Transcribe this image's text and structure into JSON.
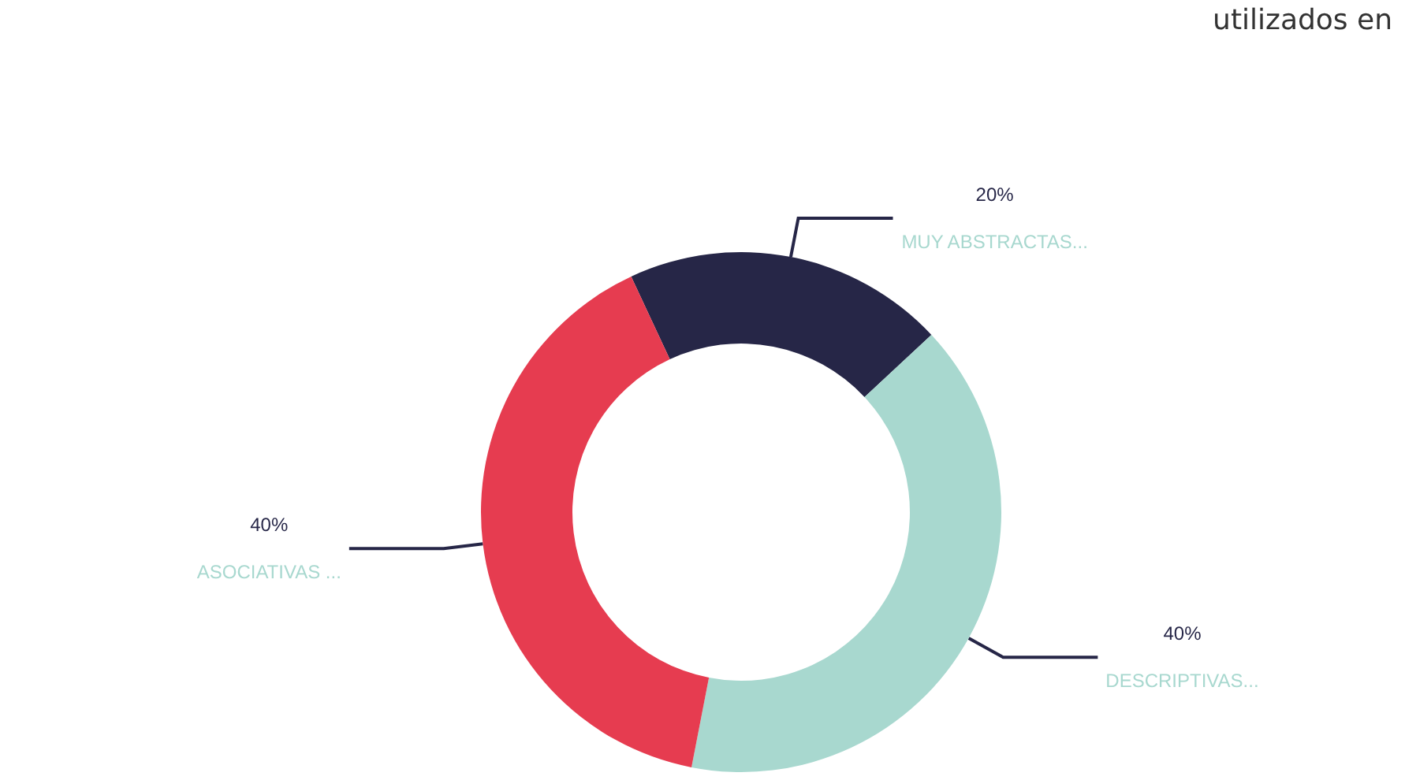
{
  "chart_data": {
    "type": "donut",
    "categories": [
      "MUY ABSTRACTAS...",
      "DESCRIPTIVAS...",
      "ASOCIATIVAS ..."
    ],
    "values": [
      20,
      40,
      40
    ],
    "value_labels": [
      "20%",
      "40%",
      "40%"
    ],
    "colors": [
      "#262647",
      "#a8d8cf",
      "#e63c50"
    ],
    "annotations": [
      "utilizados en"
    ],
    "legend": false
  }
}
